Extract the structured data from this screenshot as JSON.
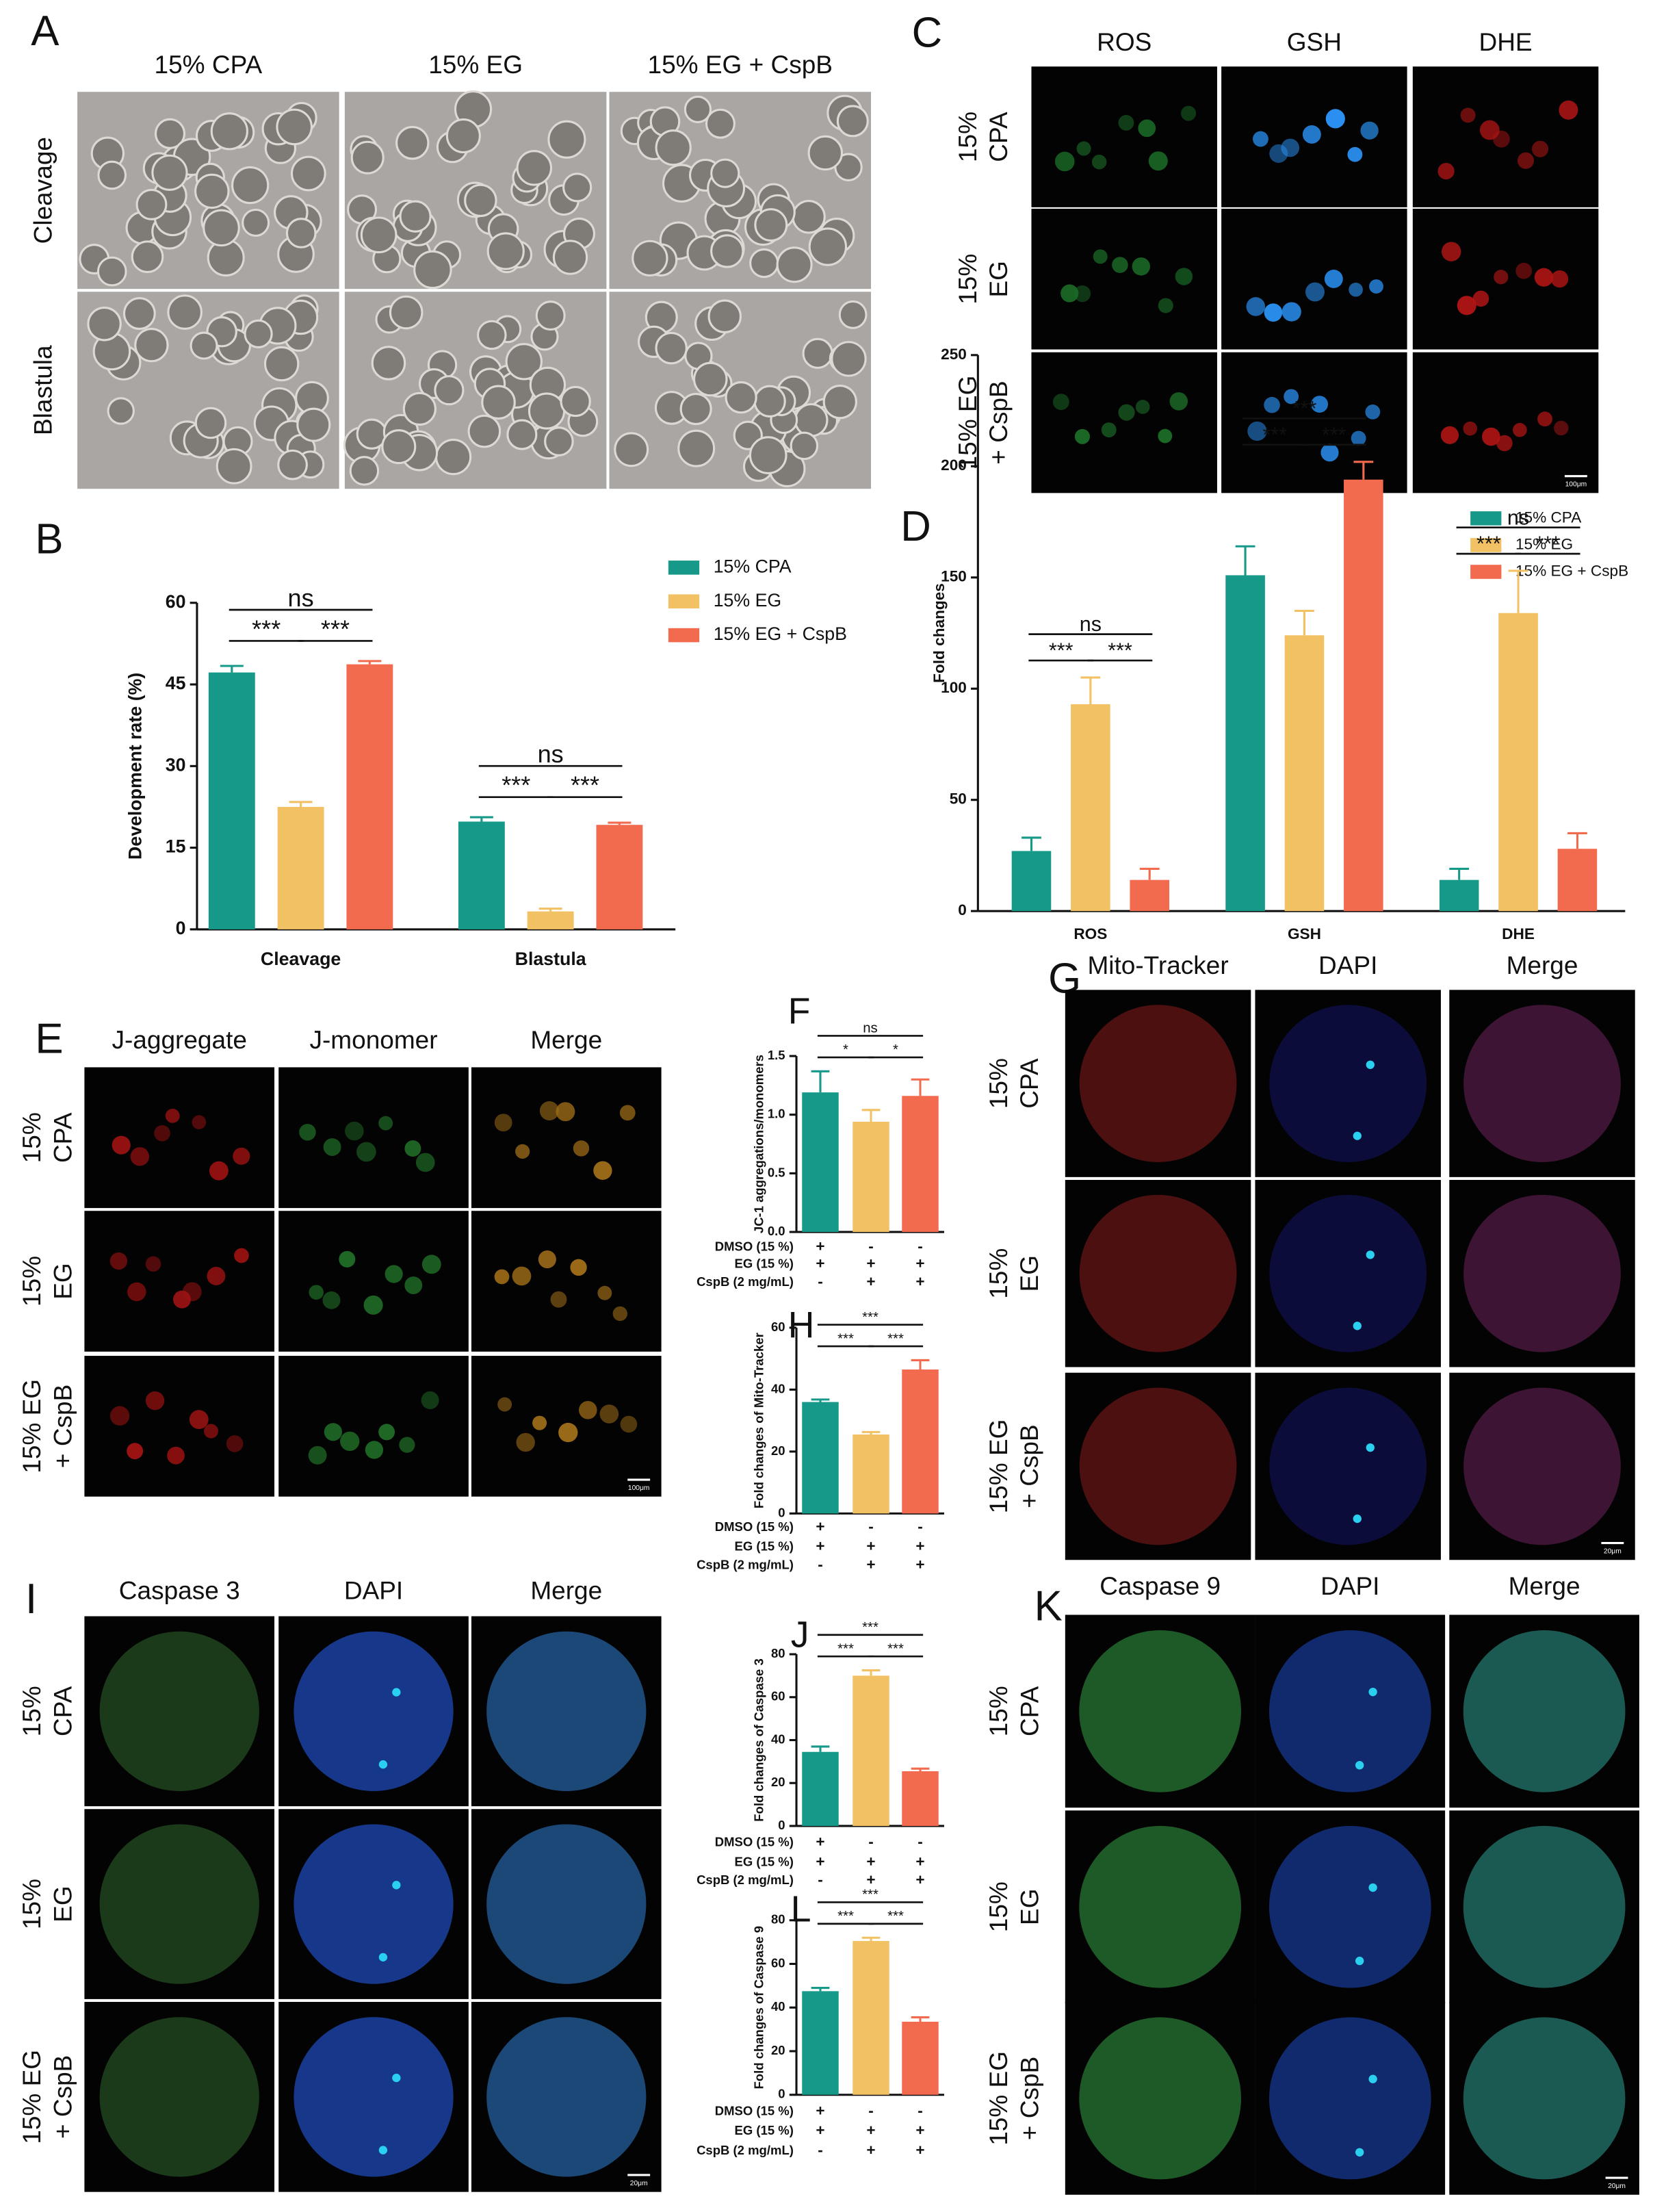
{
  "panels": [
    {
      "letter": "A",
      "columns": [
        "15% CPA",
        "15% EG",
        "15% EG + CspB"
      ],
      "rows": [
        [
          "Cleavage"
        ],
        [
          "Blastula"
        ]
      ]
    },
    {
      "letter": "C",
      "columns": [
        "ROS",
        "GSH",
        "DHE"
      ],
      "rows": [
        [
          "15%",
          "CPA"
        ],
        [
          "15%",
          "EG"
        ],
        [
          "15% EG",
          "+ CspB"
        ]
      ],
      "scale_bar": "100μm"
    },
    {
      "letter": "E",
      "columns": [
        "J-aggregate",
        "J-monomer",
        "Merge"
      ],
      "rows": [
        [
          "15%",
          "CPA"
        ],
        [
          "15%",
          "EG"
        ],
        [
          "15% EG",
          "+ CspB"
        ]
      ],
      "scale_bar": "100μm"
    },
    {
      "letter": "G",
      "columns": [
        "Mito-Tracker",
        "DAPI",
        "Merge"
      ],
      "rows": [
        [
          "15%",
          "CPA"
        ],
        [
          "15%",
          "EG"
        ],
        [
          "15% EG",
          "+ CspB"
        ]
      ],
      "scale_bar": "20μm"
    },
    {
      "letter": "I",
      "columns": [
        "Caspase 3",
        "DAPI",
        "Merge"
      ],
      "rows": [
        [
          "15%",
          "CPA"
        ],
        [
          "15%",
          "EG"
        ],
        [
          "15% EG",
          "+ CspB"
        ]
      ],
      "scale_bar": "20μm"
    },
    {
      "letter": "K",
      "columns": [
        "Caspase 9",
        "DAPI",
        "Merge"
      ],
      "rows": [
        [
          "15%",
          "CPA"
        ],
        [
          "15%",
          "EG"
        ],
        [
          "15% EG",
          "+ CspB"
        ]
      ],
      "scale_bar": "20μm"
    }
  ],
  "chart_data": [
    {
      "type": "bar",
      "label": "B",
      "categories": [
        "Cleavage",
        "Blastula"
      ],
      "series": [
        {
          "name": "15% CPA",
          "color": "#17998a",
          "values": [
            47.2,
            19.8
          ],
          "errors": [
            1.2,
            0.8
          ]
        },
        {
          "name": "15% EG",
          "color": "#f1c164",
          "values": [
            22.5,
            3.3
          ],
          "errors": [
            0.9,
            0.5
          ]
        },
        {
          "name": "15% EG + CspB",
          "color": "#f26b4f",
          "values": [
            48.7,
            19.2
          ],
          "errors": [
            0.6,
            0.4
          ]
        }
      ],
      "ylim": [
        0,
        60
      ],
      "yticks": [
        0,
        15,
        30,
        45,
        60
      ],
      "y_label": "Development rate (%)",
      "significance": [
        {
          "category": 0,
          "from": 0,
          "to": 1,
          "label": "***"
        },
        {
          "category": 0,
          "from": 1,
          "to": 2,
          "label": "***"
        },
        {
          "category": 0,
          "from": 0,
          "to": 2,
          "label": "ns"
        },
        {
          "category": 1,
          "from": 0,
          "to": 1,
          "label": "***"
        },
        {
          "category": 1,
          "from": 1,
          "to": 2,
          "label": "***"
        },
        {
          "category": 1,
          "from": 0,
          "to": 2,
          "label": "ns"
        }
      ]
    },
    {
      "type": "bar",
      "label": "D",
      "categories": [
        "ROS",
        "GSH",
        "DHE"
      ],
      "series": [
        {
          "name": "15% CPA",
          "color": "#17998a",
          "values": [
            27,
            151,
            14
          ],
          "errors": [
            6,
            13,
            5
          ]
        },
        {
          "name": "15% EG",
          "color": "#f1c164",
          "values": [
            93,
            124,
            134
          ],
          "errors": [
            12,
            11,
            19
          ]
        },
        {
          "name": "15% EG + CspB",
          "color": "#f26b4f",
          "values": [
            14,
            194,
            28
          ],
          "errors": [
            5,
            8,
            7
          ]
        }
      ],
      "ylim": [
        0,
        250
      ],
      "yticks": [
        0,
        50,
        100,
        150,
        200,
        250
      ],
      "y_label": "Fold changes",
      "significance": [
        {
          "category": 0,
          "from": 0,
          "to": 1,
          "label": "***"
        },
        {
          "category": 0,
          "from": 1,
          "to": 2,
          "label": "***"
        },
        {
          "category": 0,
          "from": 0,
          "to": 2,
          "label": "ns"
        },
        {
          "category": 1,
          "from": 0,
          "to": 1,
          "label": "***"
        },
        {
          "category": 1,
          "from": 1,
          "to": 2,
          "label": "***"
        },
        {
          "category": 1,
          "from": 0,
          "to": 2,
          "label": "***"
        },
        {
          "category": 2,
          "from": 0,
          "to": 1,
          "label": "***"
        },
        {
          "category": 2,
          "from": 1,
          "to": 2,
          "label": "***"
        },
        {
          "category": 2,
          "from": 0,
          "to": 2,
          "label": "ns"
        }
      ]
    },
    {
      "type": "bar",
      "label": "F",
      "values": [
        1.19,
        0.94,
        1.16
      ],
      "errors": [
        0.18,
        0.1,
        0.14
      ],
      "colors": [
        "#17998a",
        "#f1c164",
        "#f26b4f"
      ],
      "ylim": [
        0,
        1.5
      ],
      "yticks": [
        {
          "value": 0,
          "label": "0.0"
        },
        {
          "value": 0.5,
          "label": "0.5"
        },
        {
          "value": 1,
          "label": "1.0"
        },
        {
          "value": 1.5,
          "label": "1.5"
        }
      ],
      "y_label": "JC-1 aggregations/monomers",
      "conditions": [
        {
          "label": "DMSO (15 %)",
          "signs": [
            "+",
            "-",
            "-"
          ]
        },
        {
          "label": "EG (15 %)",
          "signs": [
            "+",
            "+",
            "+"
          ]
        },
        {
          "label": "CspB (2 mg/mL)",
          "signs": [
            "-",
            "+",
            "+"
          ]
        }
      ],
      "significance": [
        {
          "from": 0,
          "to": 1,
          "label": "*"
        },
        {
          "from": 1,
          "to": 2,
          "label": "*"
        },
        {
          "from": 0,
          "to": 2,
          "label": "ns"
        }
      ]
    },
    {
      "type": "bar",
      "label": "H",
      "values": [
        36,
        25.5,
        46.5
      ],
      "errors": [
        0.8,
        0.8,
        3
      ],
      "colors": [
        "#17998a",
        "#f1c164",
        "#f26b4f"
      ],
      "ylim": [
        0,
        60
      ],
      "yticks": [
        0,
        20,
        40,
        60
      ],
      "y_label": "Fold changes of Mito-Tracker",
      "conditions": [
        {
          "label": "DMSO (15 %)",
          "signs": [
            "+",
            "-",
            "-"
          ]
        },
        {
          "label": "EG (15 %)",
          "signs": [
            "+",
            "+",
            "+"
          ]
        },
        {
          "label": "CspB (2 mg/mL)",
          "signs": [
            "-",
            "+",
            "+"
          ]
        }
      ],
      "significance": [
        {
          "from": 0,
          "to": 1,
          "label": "***"
        },
        {
          "from": 1,
          "to": 2,
          "label": "***"
        },
        {
          "from": 0,
          "to": 2,
          "label": "***"
        }
      ]
    },
    {
      "type": "bar",
      "label": "J",
      "values": [
        34.5,
        70,
        25.5
      ],
      "errors": [
        2.5,
        2.5,
        1.2
      ],
      "colors": [
        "#17998a",
        "#f1c164",
        "#f26b4f"
      ],
      "ylim": [
        0,
        80
      ],
      "yticks": [
        0,
        20,
        40,
        60,
        80
      ],
      "y_label": "Fold changes of Caspase 3",
      "conditions": [
        {
          "label": "DMSO (15 %)",
          "signs": [
            "+",
            "-",
            "-"
          ]
        },
        {
          "label": "EG (15 %)",
          "signs": [
            "+",
            "+",
            "+"
          ]
        },
        {
          "label": "CspB (2 mg/mL)",
          "signs": [
            "-",
            "+",
            "+"
          ]
        }
      ],
      "significance": [
        {
          "from": 0,
          "to": 1,
          "label": "***"
        },
        {
          "from": 1,
          "to": 2,
          "label": "***"
        },
        {
          "from": 0,
          "to": 2,
          "label": "***"
        }
      ]
    },
    {
      "type": "bar",
      "label": "L",
      "values": [
        47.5,
        70.5,
        33.5
      ],
      "errors": [
        1.5,
        1.5,
        2
      ],
      "colors": [
        "#17998a",
        "#f1c164",
        "#f26b4f"
      ],
      "ylim": [
        0,
        80
      ],
      "yticks": [
        0,
        20,
        40,
        60,
        80
      ],
      "y_label": "Fold changes of Caspase 9",
      "conditions": [
        {
          "label": "DMSO (15 %)",
          "signs": [
            "+",
            "-",
            "-"
          ]
        },
        {
          "label": "EG (15 %)",
          "signs": [
            "+",
            "+",
            "+"
          ]
        },
        {
          "label": "CspB (2 mg/mL)",
          "signs": [
            "-",
            "+",
            "+"
          ]
        }
      ],
      "significance": [
        {
          "from": 0,
          "to": 1,
          "label": "***"
        },
        {
          "from": 1,
          "to": 2,
          "label": "***"
        },
        {
          "from": 0,
          "to": 2,
          "label": "***"
        }
      ]
    }
  ]
}
